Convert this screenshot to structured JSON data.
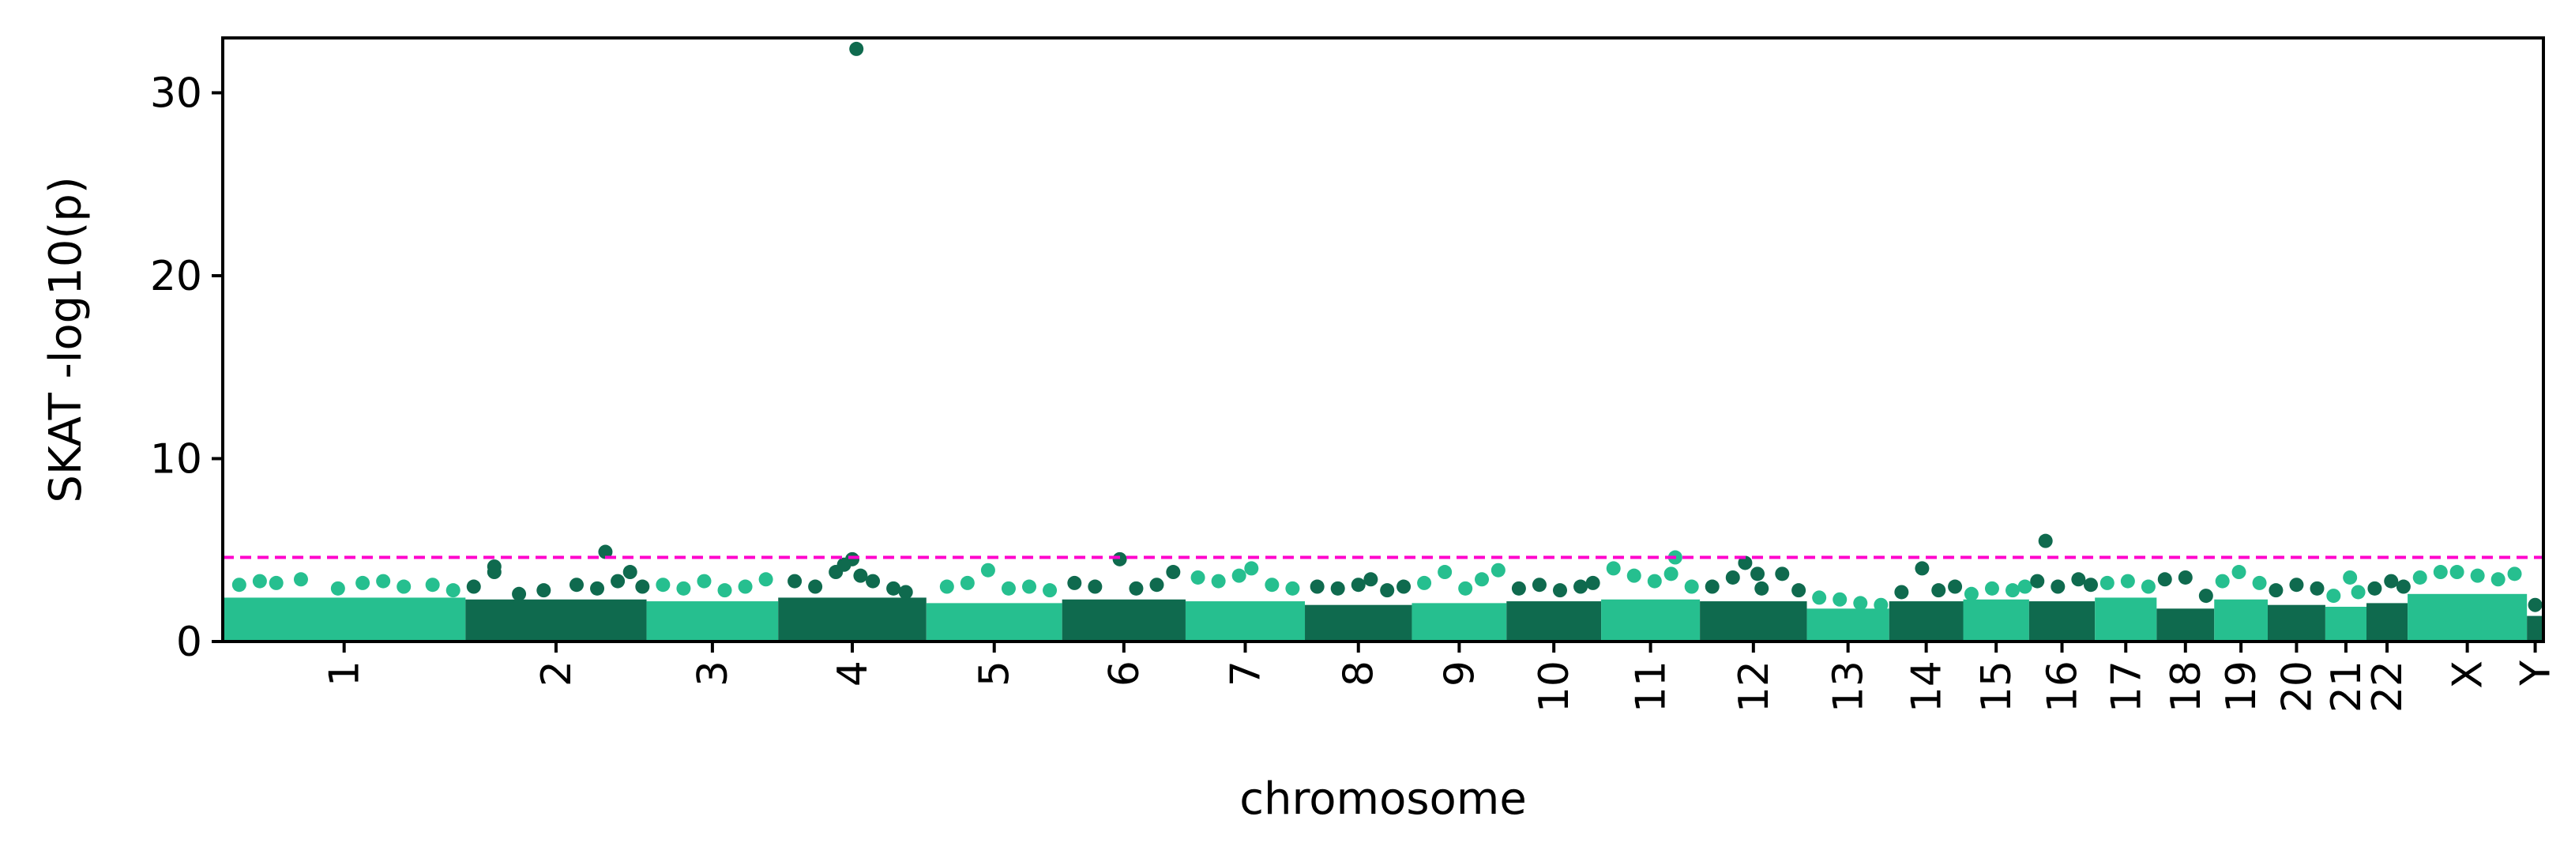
{
  "chart_data": {
    "type": "scatter",
    "subtype": "manhattan",
    "xlabel": "chromosome",
    "ylabel": "SKAT -log10(p)",
    "ylim": [
      0,
      33
    ],
    "yticks": [
      0,
      10,
      20,
      30
    ],
    "grid": false,
    "colors": {
      "light": "#26bf8f",
      "dark": "#0f6a4e",
      "threshold": "#ff00cc"
    },
    "threshold": 4.6,
    "chromosomes": [
      {
        "name": "1",
        "start": 0.0,
        "end": 2.95,
        "color": "light"
      },
      {
        "name": "2",
        "start": 2.95,
        "end": 5.15,
        "color": "dark"
      },
      {
        "name": "3",
        "start": 5.15,
        "end": 6.75,
        "color": "light"
      },
      {
        "name": "4",
        "start": 6.75,
        "end": 8.55,
        "color": "dark"
      },
      {
        "name": "5",
        "start": 8.55,
        "end": 10.2,
        "color": "light"
      },
      {
        "name": "6",
        "start": 10.2,
        "end": 11.7,
        "color": "dark"
      },
      {
        "name": "7",
        "start": 11.7,
        "end": 13.15,
        "color": "light"
      },
      {
        "name": "8",
        "start": 13.15,
        "end": 14.45,
        "color": "dark"
      },
      {
        "name": "9",
        "start": 14.45,
        "end": 15.6,
        "color": "light"
      },
      {
        "name": "10",
        "start": 15.6,
        "end": 16.75,
        "color": "dark"
      },
      {
        "name": "11",
        "start": 16.75,
        "end": 17.95,
        "color": "light"
      },
      {
        "name": "12",
        "start": 17.95,
        "end": 19.25,
        "color": "dark"
      },
      {
        "name": "13",
        "start": 19.25,
        "end": 20.25,
        "color": "light"
      },
      {
        "name": "14",
        "start": 20.25,
        "end": 21.15,
        "color": "dark"
      },
      {
        "name": "15",
        "start": 21.15,
        "end": 21.95,
        "color": "light"
      },
      {
        "name": "16",
        "start": 21.95,
        "end": 22.75,
        "color": "dark"
      },
      {
        "name": "17",
        "start": 22.75,
        "end": 23.5,
        "color": "light"
      },
      {
        "name": "18",
        "start": 23.5,
        "end": 24.2,
        "color": "dark"
      },
      {
        "name": "19",
        "start": 24.2,
        "end": 24.85,
        "color": "light"
      },
      {
        "name": "20",
        "start": 24.85,
        "end": 25.55,
        "color": "dark"
      },
      {
        "name": "21",
        "start": 25.55,
        "end": 26.05,
        "color": "light"
      },
      {
        "name": "22",
        "start": 26.05,
        "end": 26.55,
        "color": "dark"
      },
      {
        "name": "X",
        "start": 26.55,
        "end": 28.0,
        "color": "light"
      },
      {
        "name": "Y",
        "start": 28.0,
        "end": 28.2,
        "color": "dark"
      }
    ],
    "baseline_bands": [
      {
        "chrom": "1",
        "x": [
          0.0,
          2.95
        ],
        "y": 2.4
      },
      {
        "chrom": "2",
        "x": [
          2.95,
          5.15
        ],
        "y": 2.3
      },
      {
        "chrom": "3",
        "x": [
          5.15,
          6.75
        ],
        "y": 2.2
      },
      {
        "chrom": "4",
        "x": [
          6.75,
          8.55
        ],
        "y": 2.4
      },
      {
        "chrom": "5",
        "x": [
          8.55,
          10.2
        ],
        "y": 2.1
      },
      {
        "chrom": "6",
        "x": [
          10.2,
          11.7
        ],
        "y": 2.3
      },
      {
        "chrom": "7",
        "x": [
          11.7,
          13.15
        ],
        "y": 2.2
      },
      {
        "chrom": "8",
        "x": [
          13.15,
          14.45
        ],
        "y": 2.0
      },
      {
        "chrom": "9",
        "x": [
          14.45,
          15.6
        ],
        "y": 2.1
      },
      {
        "chrom": "10",
        "x": [
          15.6,
          16.75
        ],
        "y": 2.2
      },
      {
        "chrom": "11",
        "x": [
          16.75,
          17.95
        ],
        "y": 2.3
      },
      {
        "chrom": "12",
        "x": [
          17.95,
          19.25
        ],
        "y": 2.2
      },
      {
        "chrom": "13",
        "x": [
          19.25,
          20.25
        ],
        "y": 1.8
      },
      {
        "chrom": "14",
        "x": [
          20.25,
          21.15
        ],
        "y": 2.2
      },
      {
        "chrom": "15",
        "x": [
          21.15,
          21.95
        ],
        "y": 2.3
      },
      {
        "chrom": "16",
        "x": [
          21.95,
          22.75
        ],
        "y": 2.2
      },
      {
        "chrom": "17",
        "x": [
          22.75,
          23.5
        ],
        "y": 2.4
      },
      {
        "chrom": "18",
        "x": [
          23.5,
          24.2
        ],
        "y": 1.8
      },
      {
        "chrom": "19",
        "x": [
          24.2,
          24.85
        ],
        "y": 2.3
      },
      {
        "chrom": "20",
        "x": [
          24.85,
          25.55
        ],
        "y": 2.0
      },
      {
        "chrom": "21",
        "x": [
          25.55,
          26.05
        ],
        "y": 1.9
      },
      {
        "chrom": "22",
        "x": [
          26.05,
          26.55
        ],
        "y": 2.1
      },
      {
        "chrom": "X",
        "x": [
          26.55,
          28.0
        ],
        "y": 2.6
      },
      {
        "chrom": "Y",
        "x": [
          28.0,
          28.2
        ],
        "y": 1.4
      }
    ],
    "points": [
      {
        "chrom": "1",
        "x": 0.2,
        "y": 3.1
      },
      {
        "chrom": "1",
        "x": 0.45,
        "y": 3.3
      },
      {
        "chrom": "1",
        "x": 0.65,
        "y": 3.2
      },
      {
        "chrom": "1",
        "x": 0.95,
        "y": 3.4
      },
      {
        "chrom": "1",
        "x": 1.4,
        "y": 2.9
      },
      {
        "chrom": "1",
        "x": 1.7,
        "y": 3.2
      },
      {
        "chrom": "1",
        "x": 1.95,
        "y": 3.3
      },
      {
        "chrom": "1",
        "x": 2.2,
        "y": 3.0
      },
      {
        "chrom": "1",
        "x": 2.55,
        "y": 3.1
      },
      {
        "chrom": "1",
        "x": 2.8,
        "y": 2.8
      },
      {
        "chrom": "2",
        "x": 3.05,
        "y": 3.0
      },
      {
        "chrom": "2",
        "x": 3.3,
        "y": 3.8
      },
      {
        "chrom": "2",
        "x": 3.3,
        "y": 4.1
      },
      {
        "chrom": "2",
        "x": 3.6,
        "y": 2.6
      },
      {
        "chrom": "2",
        "x": 3.9,
        "y": 2.8
      },
      {
        "chrom": "2",
        "x": 4.3,
        "y": 3.1
      },
      {
        "chrom": "2",
        "x": 4.55,
        "y": 2.9
      },
      {
        "chrom": "2",
        "x": 4.65,
        "y": 4.9
      },
      {
        "chrom": "2",
        "x": 4.8,
        "y": 3.3
      },
      {
        "chrom": "2",
        "x": 4.95,
        "y": 3.8
      },
      {
        "chrom": "2",
        "x": 5.1,
        "y": 3.0
      },
      {
        "chrom": "3",
        "x": 5.35,
        "y": 3.1
      },
      {
        "chrom": "3",
        "x": 5.6,
        "y": 2.9
      },
      {
        "chrom": "3",
        "x": 5.85,
        "y": 3.3
      },
      {
        "chrom": "3",
        "x": 6.1,
        "y": 2.8
      },
      {
        "chrom": "3",
        "x": 6.35,
        "y": 3.0
      },
      {
        "chrom": "3",
        "x": 6.6,
        "y": 3.4
      },
      {
        "chrom": "4",
        "x": 6.95,
        "y": 3.3
      },
      {
        "chrom": "4",
        "x": 7.2,
        "y": 3.0
      },
      {
        "chrom": "4",
        "x": 7.45,
        "y": 3.8
      },
      {
        "chrom": "4",
        "x": 7.55,
        "y": 4.2
      },
      {
        "chrom": "4",
        "x": 7.65,
        "y": 4.5
      },
      {
        "chrom": "4",
        "x": 7.7,
        "y": 32.4
      },
      {
        "chrom": "4",
        "x": 7.75,
        "y": 3.6
      },
      {
        "chrom": "4",
        "x": 7.9,
        "y": 3.3
      },
      {
        "chrom": "4",
        "x": 8.15,
        "y": 2.9
      },
      {
        "chrom": "4",
        "x": 8.3,
        "y": 2.7
      },
      {
        "chrom": "5",
        "x": 8.8,
        "y": 3.0
      },
      {
        "chrom": "5",
        "x": 9.05,
        "y": 3.2
      },
      {
        "chrom": "5",
        "x": 9.3,
        "y": 3.9
      },
      {
        "chrom": "5",
        "x": 9.55,
        "y": 2.9
      },
      {
        "chrom": "5",
        "x": 9.8,
        "y": 3.0
      },
      {
        "chrom": "5",
        "x": 10.05,
        "y": 2.8
      },
      {
        "chrom": "6",
        "x": 10.35,
        "y": 3.2
      },
      {
        "chrom": "6",
        "x": 10.6,
        "y": 3.0
      },
      {
        "chrom": "6",
        "x": 10.9,
        "y": 4.5
      },
      {
        "chrom": "6",
        "x": 11.1,
        "y": 2.9
      },
      {
        "chrom": "6",
        "x": 11.35,
        "y": 3.1
      },
      {
        "chrom": "6",
        "x": 11.55,
        "y": 3.8
      },
      {
        "chrom": "7",
        "x": 11.85,
        "y": 3.5
      },
      {
        "chrom": "7",
        "x": 12.1,
        "y": 3.3
      },
      {
        "chrom": "7",
        "x": 12.35,
        "y": 3.6
      },
      {
        "chrom": "7",
        "x": 12.5,
        "y": 4.0
      },
      {
        "chrom": "7",
        "x": 12.75,
        "y": 3.1
      },
      {
        "chrom": "7",
        "x": 13.0,
        "y": 2.9
      },
      {
        "chrom": "8",
        "x": 13.3,
        "y": 3.0
      },
      {
        "chrom": "8",
        "x": 13.55,
        "y": 2.9
      },
      {
        "chrom": "8",
        "x": 13.8,
        "y": 3.1
      },
      {
        "chrom": "8",
        "x": 13.95,
        "y": 3.4
      },
      {
        "chrom": "8",
        "x": 14.15,
        "y": 2.8
      },
      {
        "chrom": "8",
        "x": 14.35,
        "y": 3.0
      },
      {
        "chrom": "9",
        "x": 14.6,
        "y": 3.2
      },
      {
        "chrom": "9",
        "x": 14.85,
        "y": 3.8
      },
      {
        "chrom": "9",
        "x": 15.1,
        "y": 2.9
      },
      {
        "chrom": "9",
        "x": 15.3,
        "y": 3.4
      },
      {
        "chrom": "9",
        "x": 15.5,
        "y": 3.9
      },
      {
        "chrom": "10",
        "x": 15.75,
        "y": 2.9
      },
      {
        "chrom": "10",
        "x": 16.0,
        "y": 3.1
      },
      {
        "chrom": "10",
        "x": 16.25,
        "y": 2.8
      },
      {
        "chrom": "10",
        "x": 16.5,
        "y": 3.0
      },
      {
        "chrom": "10",
        "x": 16.65,
        "y": 3.2
      },
      {
        "chrom": "11",
        "x": 16.9,
        "y": 4.0
      },
      {
        "chrom": "11",
        "x": 17.15,
        "y": 3.6
      },
      {
        "chrom": "11",
        "x": 17.4,
        "y": 3.3
      },
      {
        "chrom": "11",
        "x": 17.6,
        "y": 3.7
      },
      {
        "chrom": "11",
        "x": 17.65,
        "y": 4.6
      },
      {
        "chrom": "11",
        "x": 17.85,
        "y": 3.0
      },
      {
        "chrom": "12",
        "x": 18.1,
        "y": 3.0
      },
      {
        "chrom": "12",
        "x": 18.35,
        "y": 3.5
      },
      {
        "chrom": "12",
        "x": 18.5,
        "y": 4.3
      },
      {
        "chrom": "12",
        "x": 18.65,
        "y": 3.7
      },
      {
        "chrom": "12",
        "x": 18.7,
        "y": 2.9
      },
      {
        "chrom": "12",
        "x": 18.95,
        "y": 3.7
      },
      {
        "chrom": "12",
        "x": 19.15,
        "y": 2.8
      },
      {
        "chrom": "13",
        "x": 19.4,
        "y": 2.4
      },
      {
        "chrom": "13",
        "x": 19.65,
        "y": 2.3
      },
      {
        "chrom": "13",
        "x": 19.9,
        "y": 2.1
      },
      {
        "chrom": "13",
        "x": 20.15,
        "y": 2.0
      },
      {
        "chrom": "14",
        "x": 20.4,
        "y": 2.7
      },
      {
        "chrom": "14",
        "x": 20.65,
        "y": 4.0
      },
      {
        "chrom": "14",
        "x": 20.85,
        "y": 2.8
      },
      {
        "chrom": "14",
        "x": 21.05,
        "y": 3.0
      },
      {
        "chrom": "15",
        "x": 21.25,
        "y": 2.6
      },
      {
        "chrom": "15",
        "x": 21.5,
        "y": 2.9
      },
      {
        "chrom": "15",
        "x": 21.75,
        "y": 2.8
      },
      {
        "chrom": "15",
        "x": 21.9,
        "y": 3.0
      },
      {
        "chrom": "16",
        "x": 22.05,
        "y": 3.3
      },
      {
        "chrom": "16",
        "x": 22.15,
        "y": 5.5
      },
      {
        "chrom": "16",
        "x": 22.3,
        "y": 3.0
      },
      {
        "chrom": "16",
        "x": 22.55,
        "y": 3.4
      },
      {
        "chrom": "16",
        "x": 22.7,
        "y": 3.1
      },
      {
        "chrom": "17",
        "x": 22.9,
        "y": 3.2
      },
      {
        "chrom": "17",
        "x": 23.15,
        "y": 3.3
      },
      {
        "chrom": "17",
        "x": 23.4,
        "y": 3.0
      },
      {
        "chrom": "18",
        "x": 23.6,
        "y": 3.4
      },
      {
        "chrom": "18",
        "x": 23.85,
        "y": 3.5
      },
      {
        "chrom": "18",
        "x": 24.1,
        "y": 2.5
      },
      {
        "chrom": "19",
        "x": 24.3,
        "y": 3.3
      },
      {
        "chrom": "19",
        "x": 24.5,
        "y": 3.8
      },
      {
        "chrom": "19",
        "x": 24.75,
        "y": 3.2
      },
      {
        "chrom": "20",
        "x": 24.95,
        "y": 2.8
      },
      {
        "chrom": "20",
        "x": 25.2,
        "y": 3.1
      },
      {
        "chrom": "20",
        "x": 25.45,
        "y": 2.9
      },
      {
        "chrom": "21",
        "x": 25.65,
        "y": 2.5
      },
      {
        "chrom": "21",
        "x": 25.85,
        "y": 3.5
      },
      {
        "chrom": "21",
        "x": 25.95,
        "y": 2.7
      },
      {
        "chrom": "22",
        "x": 26.15,
        "y": 2.9
      },
      {
        "chrom": "22",
        "x": 26.35,
        "y": 3.3
      },
      {
        "chrom": "22",
        "x": 26.5,
        "y": 3.0
      },
      {
        "chrom": "X",
        "x": 26.7,
        "y": 3.5
      },
      {
        "chrom": "X",
        "x": 26.95,
        "y": 3.8
      },
      {
        "chrom": "X",
        "x": 27.15,
        "y": 3.8
      },
      {
        "chrom": "X",
        "x": 27.4,
        "y": 3.6
      },
      {
        "chrom": "X",
        "x": 27.65,
        "y": 3.4
      },
      {
        "chrom": "X",
        "x": 27.85,
        "y": 3.7
      },
      {
        "chrom": "Y",
        "x": 28.1,
        "y": 2.0
      }
    ]
  }
}
